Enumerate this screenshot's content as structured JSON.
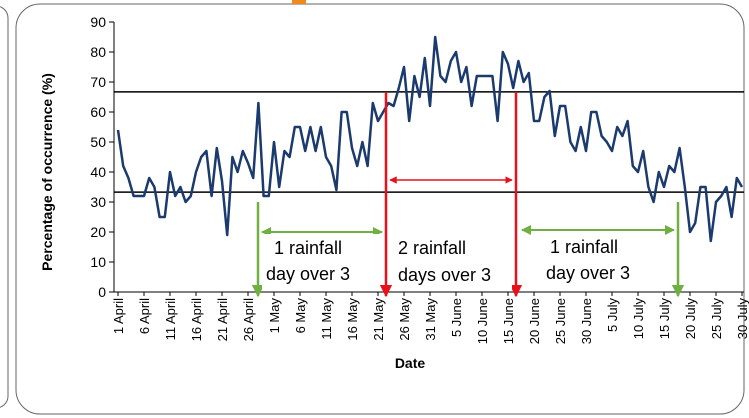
{
  "chart_data": {
    "type": "line",
    "y_label": "Percentage of occurrence (%)",
    "x_label": "Date",
    "categories": [
      "1 April",
      null,
      null,
      null,
      null,
      "6 April",
      null,
      null,
      null,
      null,
      "11 April",
      null,
      null,
      null,
      null,
      "16 April",
      null,
      null,
      null,
      null,
      "21 April",
      null,
      null,
      null,
      null,
      "26 April",
      null,
      null,
      null,
      null,
      "1 May",
      null,
      null,
      null,
      null,
      "6 May",
      null,
      null,
      null,
      null,
      "11 May",
      null,
      null,
      null,
      null,
      "16 May",
      null,
      null,
      null,
      null,
      "21 May",
      null,
      null,
      null,
      null,
      "26 May",
      null,
      null,
      null,
      null,
      "31 May",
      null,
      null,
      null,
      null,
      "5 June",
      null,
      null,
      null,
      null,
      "10 June",
      null,
      null,
      null,
      null,
      "15 June",
      null,
      null,
      null,
      null,
      "20 June",
      null,
      null,
      null,
      null,
      "25 June",
      null,
      null,
      null,
      null,
      "30 June",
      null,
      null,
      null,
      null,
      "5 July",
      null,
      null,
      null,
      null,
      "10 July",
      null,
      null,
      null,
      null,
      "15 July",
      null,
      null,
      null,
      null,
      "20 July",
      null,
      null,
      null,
      null,
      "25 July",
      null,
      null,
      null,
      null,
      "30 July"
    ],
    "values": [
      54,
      42,
      38,
      32,
      32,
      32,
      38,
      35,
      25,
      25,
      40,
      32,
      35,
      30,
      32,
      40,
      45,
      47,
      32,
      48,
      37,
      19,
      45,
      40,
      47,
      43,
      38,
      63,
      32,
      32,
      50,
      35,
      47,
      45,
      55,
      55,
      47,
      55,
      47,
      55,
      45,
      42,
      34,
      60,
      60,
      48,
      42,
      50,
      42,
      63,
      57,
      60,
      63,
      62,
      68,
      75,
      57,
      72,
      65,
      78,
      62,
      85,
      72,
      70,
      77,
      80,
      70,
      75,
      62,
      72,
      72,
      72,
      72,
      57,
      80,
      76,
      68,
      77,
      70,
      73,
      57,
      57,
      65,
      67,
      52,
      62,
      62,
      50,
      47,
      55,
      47,
      60,
      60,
      52,
      50,
      47,
      55,
      52,
      57,
      42,
      40,
      47,
      35,
      30,
      40,
      35,
      42,
      40,
      48,
      35,
      20,
      23,
      35,
      35,
      17,
      30,
      32,
      35,
      25,
      38,
      35
    ],
    "color": "#1b3a6e",
    "ylim": [
      0,
      90
    ],
    "yticks": [
      0,
      10,
      20,
      30,
      40,
      50,
      60,
      70,
      80,
      90
    ],
    "reference_lines": [
      66.7,
      33.3
    ],
    "annotations": [
      "1 rainfall",
      "day over 3",
      "2 rainfall",
      "days over 3",
      "1 rainfall",
      "day over 3"
    ]
  }
}
